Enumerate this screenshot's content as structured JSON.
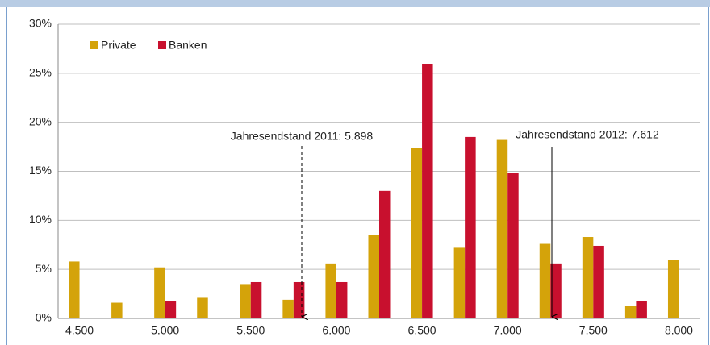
{
  "chart_data": {
    "type": "bar",
    "categories": [
      "4.500",
      null,
      "5.000",
      null,
      "5.500",
      null,
      "6.000",
      null,
      "6.500",
      null,
      "7.000",
      null,
      "7.500",
      null,
      "8.000"
    ],
    "series": [
      {
        "name": "Private",
        "color": "#d4a30a",
        "values": [
          5.8,
          1.6,
          5.2,
          2.1,
          3.5,
          1.9,
          5.6,
          8.5,
          17.4,
          7.2,
          18.2,
          7.6,
          8.3,
          1.3,
          6.0
        ]
      },
      {
        "name": "Banken",
        "color": "#c8102e",
        "values": [
          0,
          0,
          1.8,
          0,
          3.7,
          3.7,
          3.7,
          13.0,
          25.9,
          18.5,
          14.8,
          5.6,
          7.4,
          1.8,
          0
        ]
      }
    ],
    "ylim": [
      0,
      30
    ],
    "yticks": [
      {
        "value": 0,
        "label": "0%"
      },
      {
        "value": 5,
        "label": "5%"
      },
      {
        "value": 10,
        "label": "10%"
      },
      {
        "value": 15,
        "label": "15%"
      },
      {
        "value": 20,
        "label": "20%"
      },
      {
        "value": 25,
        "label": "25%"
      },
      {
        "value": 30,
        "label": "30%"
      }
    ],
    "grid": true,
    "legend": "upper left",
    "annotations": [
      "Jahresendstand 2011: 5.898",
      "Jahresendstand 2012: 7.612"
    ]
  }
}
